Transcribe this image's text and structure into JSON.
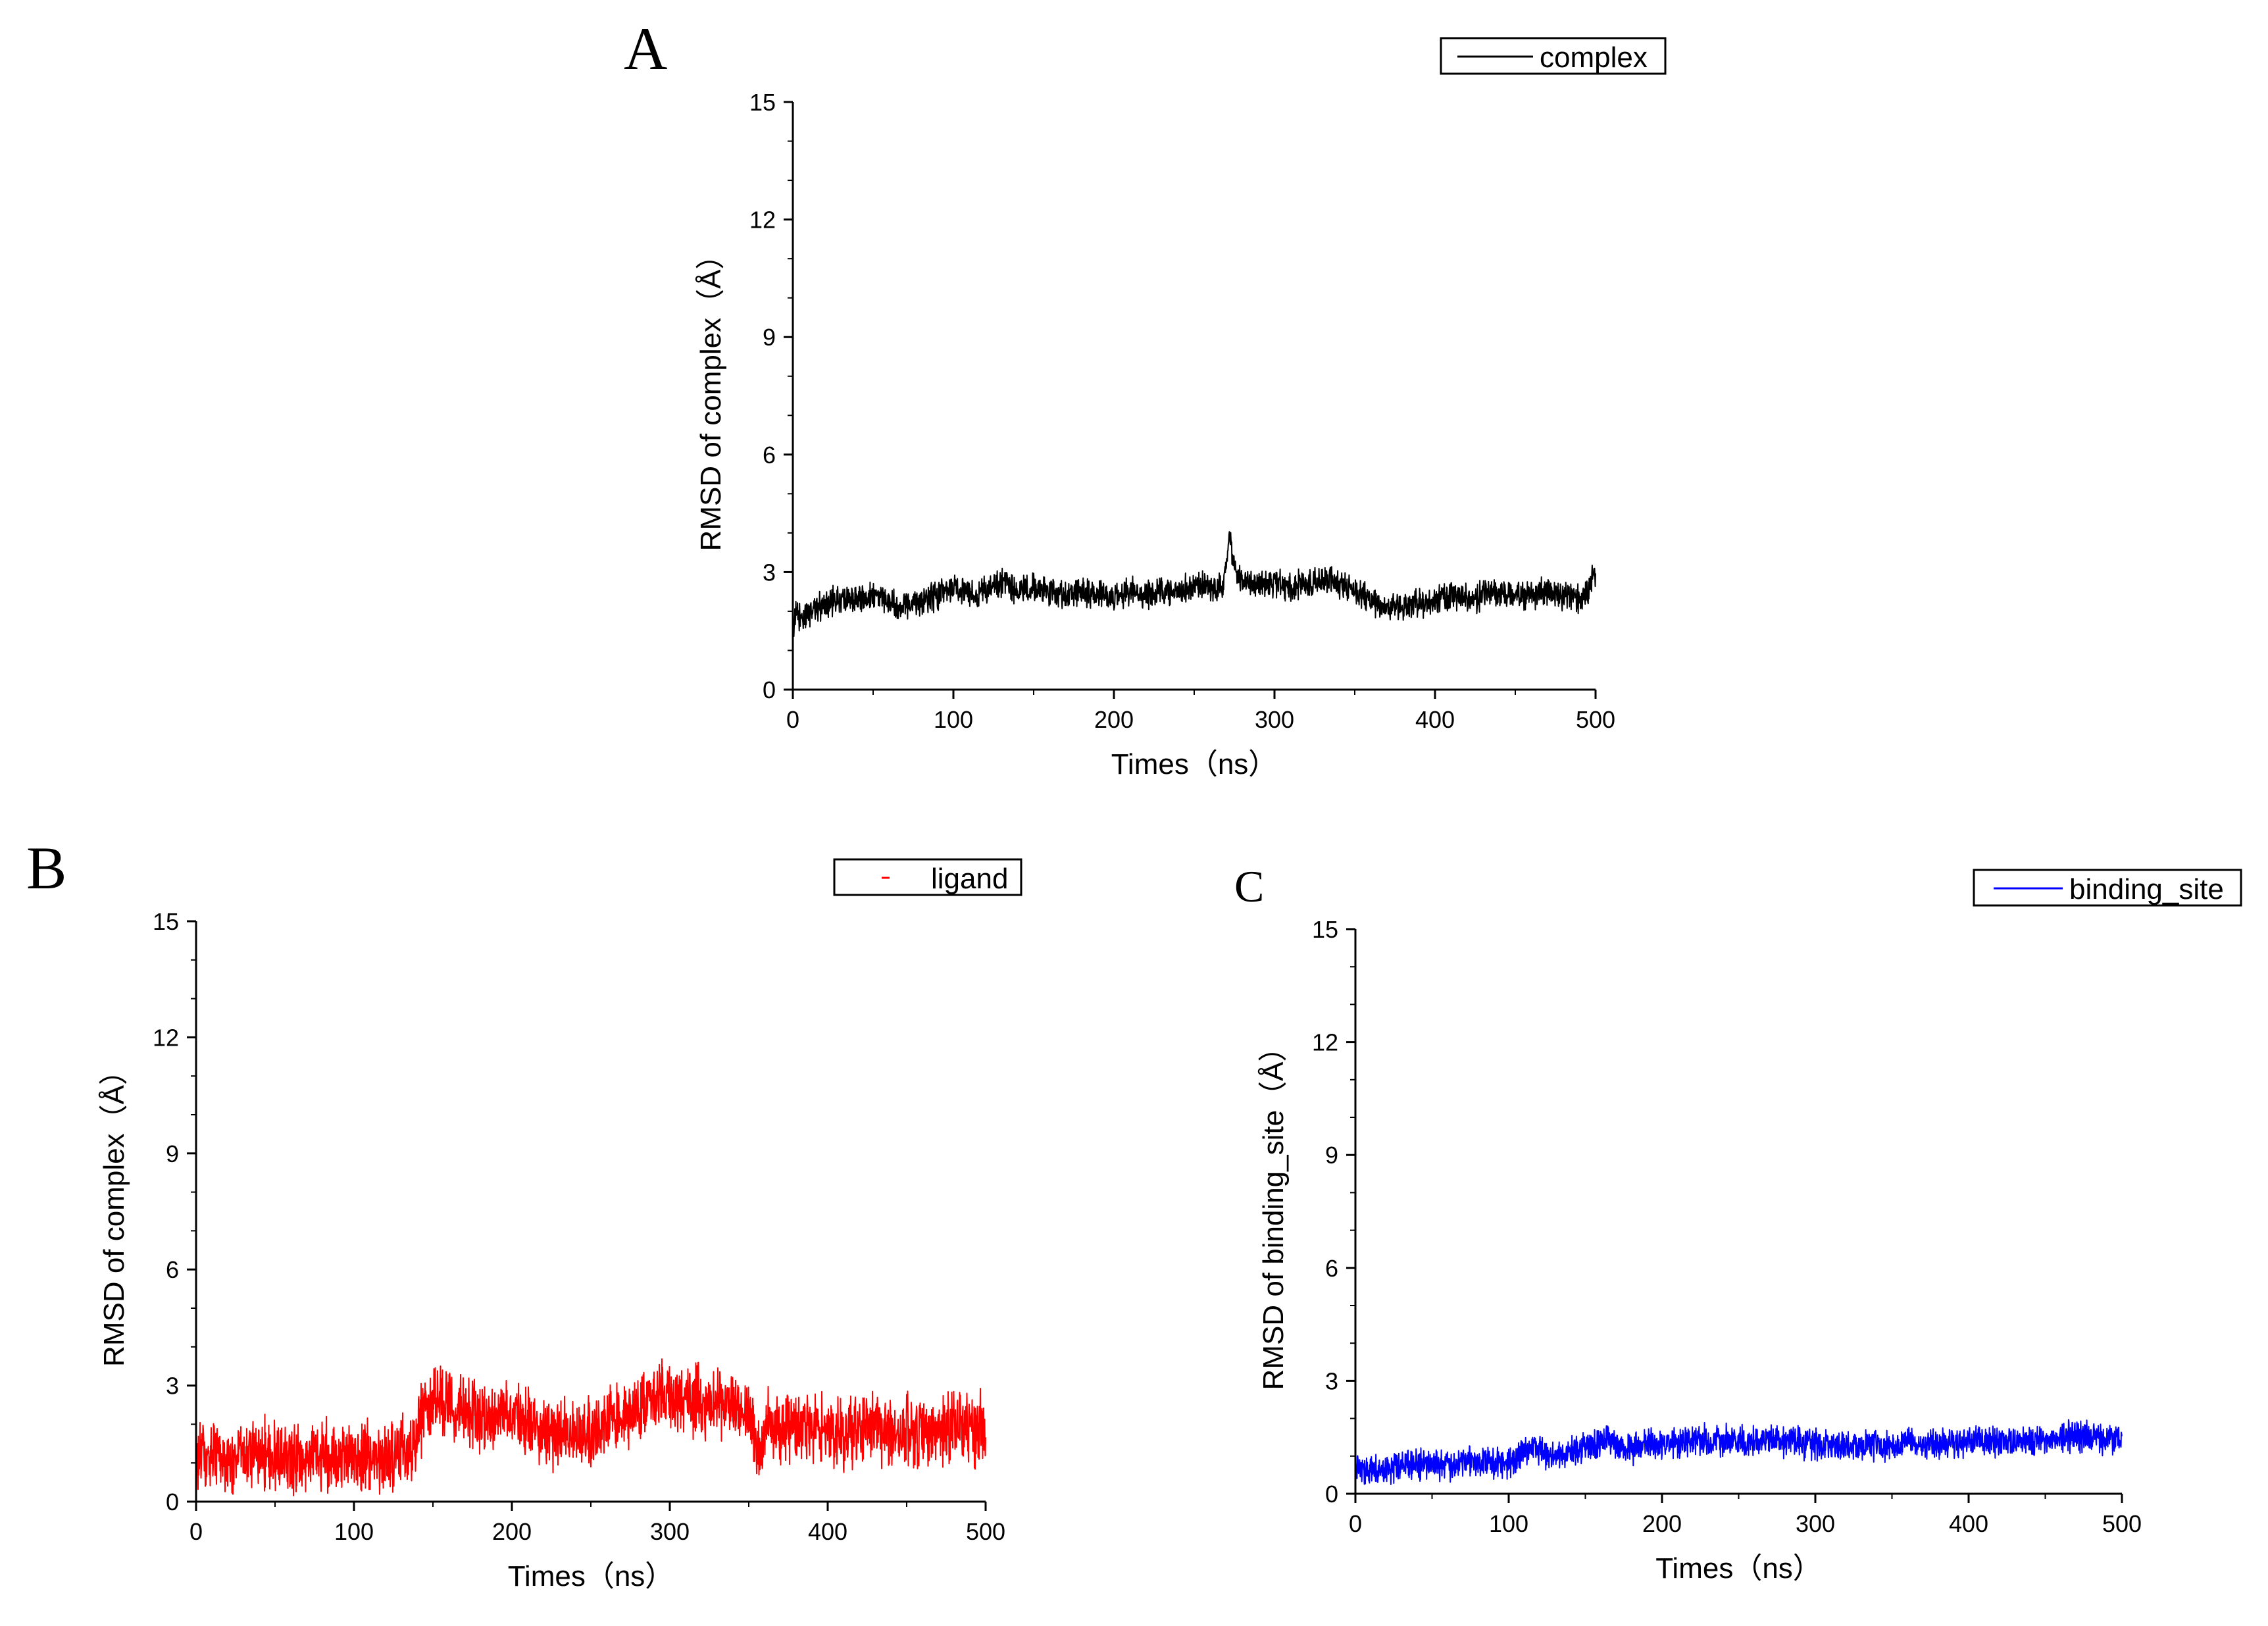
{
  "figure_caption": "",
  "chart_data": [
    {
      "panel": "A",
      "type": "line",
      "title": "",
      "xlabel": "Times（ns）",
      "ylabel": "RMSD of complex（Å）",
      "xlim": [
        0,
        500
      ],
      "ylim": [
        0,
        15
      ],
      "xticks": [
        0,
        100,
        200,
        300,
        400,
        500
      ],
      "yticks": [
        0,
        3,
        6,
        9,
        12,
        15
      ],
      "legend": {
        "label": "complex",
        "position": "top-right"
      },
      "color": "#000000",
      "series": [
        {
          "name": "complex",
          "x": [
            0,
            2,
            5,
            10,
            15,
            20,
            30,
            40,
            50,
            60,
            65,
            70,
            80,
            90,
            100,
            110,
            120,
            125,
            130,
            140,
            150,
            160,
            170,
            180,
            190,
            200,
            210,
            220,
            230,
            240,
            250,
            255,
            260,
            265,
            268,
            270,
            272,
            274,
            276,
            280,
            290,
            300,
            310,
            320,
            330,
            340,
            350,
            355,
            360,
            370,
            380,
            390,
            400,
            410,
            420,
            430,
            440,
            450,
            460,
            470,
            480,
            490,
            495,
            498,
            500
          ],
          "y": [
            1.5,
            1.9,
            1.8,
            2.0,
            2.1,
            2.2,
            2.3,
            2.3,
            2.4,
            2.3,
            2.1,
            2.2,
            2.3,
            2.4,
            2.6,
            2.5,
            2.5,
            2.6,
            2.7,
            2.5,
            2.6,
            2.5,
            2.4,
            2.5,
            2.4,
            2.4,
            2.5,
            2.4,
            2.5,
            2.5,
            2.6,
            2.7,
            2.5,
            2.6,
            2.6,
            3.2,
            4.0,
            3.4,
            3.0,
            2.8,
            2.7,
            2.7,
            2.6,
            2.7,
            2.8,
            2.7,
            2.6,
            2.4,
            2.3,
            2.1,
            2.1,
            2.2,
            2.3,
            2.4,
            2.3,
            2.4,
            2.5,
            2.4,
            2.4,
            2.5,
            2.4,
            2.3,
            2.4,
            2.8,
            2.9
          ],
          "noise": 0.45
        }
      ]
    },
    {
      "panel": "B",
      "type": "line",
      "title": "",
      "xlabel": "Times（ns）",
      "ylabel": "RMSD of complex（Å）",
      "xlim": [
        0,
        500
      ],
      "ylim": [
        0,
        15
      ],
      "xticks": [
        0,
        100,
        200,
        300,
        400,
        500
      ],
      "yticks": [
        0,
        3,
        6,
        9,
        12,
        15
      ],
      "legend": {
        "label": "ligand",
        "position": "top-right"
      },
      "color": "#ff0000",
      "series": [
        {
          "name": "ligand",
          "x": [
            0,
            20,
            40,
            60,
            80,
            100,
            120,
            135,
            140,
            145,
            150,
            160,
            170,
            180,
            190,
            200,
            210,
            220,
            240,
            250,
            260,
            270,
            280,
            290,
            300,
            310,
            320,
            330,
            340,
            350,
            355,
            358,
            360,
            370,
            380,
            400,
            410,
            420,
            440,
            460,
            480,
            500
          ],
          "y": [
            1.1,
            1.1,
            1.2,
            1.1,
            1.2,
            1.2,
            1.2,
            1.3,
            1.8,
            2.5,
            2.6,
            2.6,
            2.4,
            2.0,
            2.1,
            2.4,
            1.9,
            1.8,
            1.9,
            1.8,
            2.0,
            2.2,
            2.4,
            2.7,
            2.8,
            2.6,
            2.6,
            2.5,
            2.5,
            2.2,
            1.5,
            1.3,
            2.0,
            1.9,
            2.0,
            1.8,
            1.7,
            1.9,
            1.8,
            1.8,
            1.9,
            1.9
          ],
          "noise": 1.1
        }
      ]
    },
    {
      "panel": "C",
      "type": "line",
      "title": "",
      "xlabel": "Times（ns）",
      "ylabel": "RMSD of binding_site（Å）",
      "xlim": [
        0,
        500
      ],
      "ylim": [
        0,
        15
      ],
      "xticks": [
        0,
        100,
        200,
        300,
        400,
        500
      ],
      "yticks": [
        0,
        3,
        6,
        9,
        12,
        15
      ],
      "legend": {
        "label": "binding_site",
        "position": "top-right"
      },
      "color": "#0000ff",
      "series": [
        {
          "name": "binding_site",
          "x": [
            0,
            20,
            40,
            60,
            80,
            100,
            110,
            115,
            120,
            130,
            140,
            150,
            160,
            165,
            170,
            180,
            190,
            200,
            220,
            240,
            260,
            280,
            300,
            320,
            340,
            355,
            360,
            365,
            370,
            380,
            400,
            420,
            440,
            460,
            480,
            500
          ],
          "y": [
            0.6,
            0.7,
            0.8,
            0.8,
            0.8,
            0.8,
            1.1,
            1.3,
            1.1,
            1.0,
            1.1,
            1.2,
            1.3,
            1.5,
            1.3,
            1.2,
            1.3,
            1.3,
            1.4,
            1.4,
            1.4,
            1.4,
            1.3,
            1.3,
            1.3,
            1.2,
            1.5,
            1.3,
            1.3,
            1.3,
            1.4,
            1.4,
            1.4,
            1.5,
            1.5,
            1.4
          ],
          "noise": 0.5
        }
      ]
    }
  ]
}
